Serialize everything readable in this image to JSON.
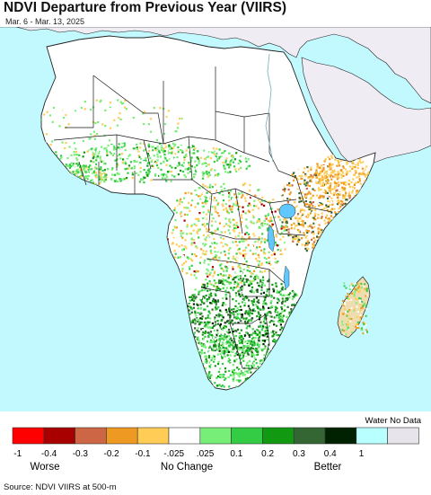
{
  "title": "NDVI Departure from Previous Year (VIIRS)",
  "subtitle": "Mar. 6 - Mar. 13, 2025",
  "source": "Source: NDVI VIIRS at 500-m",
  "colors": {
    "ocean": "#c2f9ff",
    "land_outside": "#f0ecf3",
    "desert_no_change": "#ffffff",
    "border": "#222222"
  },
  "legend": {
    "water_label": "Water No Data",
    "bins": [
      {
        "color": "#ff0000"
      },
      {
        "color": "#a80000"
      },
      {
        "color": "#cc6644"
      },
      {
        "color": "#ee9922"
      },
      {
        "color": "#ffcc55"
      },
      {
        "color": "#ffffff"
      },
      {
        "color": "#77ee77"
      },
      {
        "color": "#33cc44"
      },
      {
        "color": "#119911"
      },
      {
        "color": "#336633"
      },
      {
        "color": "#002200"
      },
      {
        "color": "#b8ffff"
      },
      {
        "color": "#e8e4ec"
      }
    ],
    "ticks": [
      "-1",
      "-0.4",
      "-0.3",
      "-0.2",
      "-0.1",
      "-.025",
      ".025",
      "0.1",
      "0.2",
      "0.3",
      "0.4",
      "1"
    ],
    "category_labels": [
      "Worse",
      "No Change",
      "Better"
    ]
  }
}
